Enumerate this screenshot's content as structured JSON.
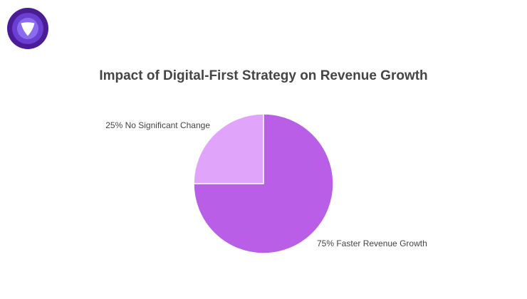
{
  "colors": {
    "logo_outer": "#4a1c98",
    "logo_mid": "#6a3fd1",
    "logo_inner": "#8b6cf0",
    "logo_glyph": "#ffffff"
  },
  "logo": {
    "icon": "shield-v-logo-icon"
  },
  "chart_data": {
    "type": "pie",
    "title": "Impact of Digital-First Strategy on Revenue Growth",
    "slices": [
      {
        "label": "25% No Significant Change",
        "value": 25,
        "color": "#e0a5fb"
      },
      {
        "label": "75% Faster Revenue Growth",
        "value": 75,
        "color": "#b95ee6"
      }
    ],
    "start_angle_deg": 0,
    "direction": "counterclockwise",
    "legend": "none"
  }
}
